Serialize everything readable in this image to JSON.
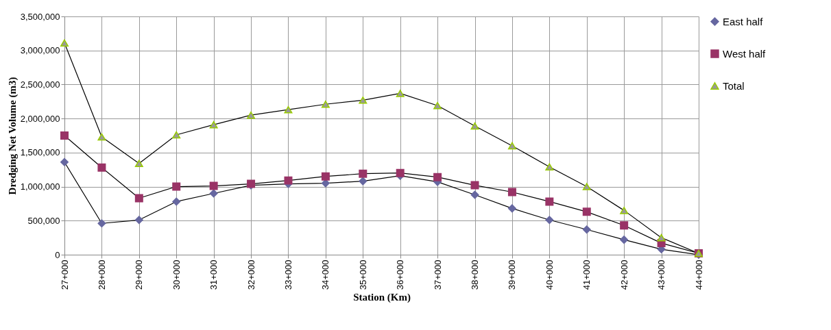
{
  "chart_data": {
    "type": "line",
    "xlabel": "Station (Km)",
    "ylabel": "Dredging Net Volume (m3)",
    "categories": [
      "27+000",
      "28+000",
      "29+000",
      "30+000",
      "31+000",
      "32+000",
      "33+000",
      "34+000",
      "35+000",
      "36+000",
      "37+000",
      "38+000",
      "39+000",
      "40+000",
      "41+000",
      "42+000",
      "43+000",
      "44+000"
    ],
    "series": [
      {
        "name": "East half",
        "color": "#6667a0",
        "marker": "diamond",
        "values": [
          1360000,
          460000,
          510000,
          780000,
          900000,
          1020000,
          1040000,
          1050000,
          1080000,
          1160000,
          1070000,
          880000,
          680000,
          510000,
          370000,
          220000,
          80000,
          0
        ]
      },
      {
        "name": "West half",
        "color": "#993366",
        "marker": "square",
        "values": [
          1750000,
          1280000,
          830000,
          1000000,
          1010000,
          1040000,
          1090000,
          1150000,
          1190000,
          1200000,
          1140000,
          1020000,
          920000,
          780000,
          630000,
          430000,
          170000,
          20000
        ]
      },
      {
        "name": "Total",
        "color": "#999999",
        "marker": "triangle",
        "values": [
          3110000,
          1730000,
          1340000,
          1760000,
          1910000,
          2050000,
          2130000,
          2210000,
          2270000,
          2370000,
          2190000,
          1890000,
          1600000,
          1290000,
          1000000,
          650000,
          250000,
          20000
        ]
      }
    ],
    "ylim": [
      0,
      3500000
    ],
    "yticks": [
      0,
      {
        "value": 500000,
        "label": "500,000"
      },
      {
        "value": 1000000,
        "label": "1,000,000"
      },
      {
        "value": 1500000,
        "label": "1,500,000"
      },
      {
        "value": 2000000,
        "label": "2,000,000"
      },
      {
        "value": 2500000,
        "label": "2,500,000"
      },
      {
        "value": 3000000,
        "label": "3,000,000"
      },
      {
        "value": 3500000,
        "label": "3,500,000"
      }
    ],
    "grid": true,
    "legend": "right",
    "line_style": "solid"
  }
}
